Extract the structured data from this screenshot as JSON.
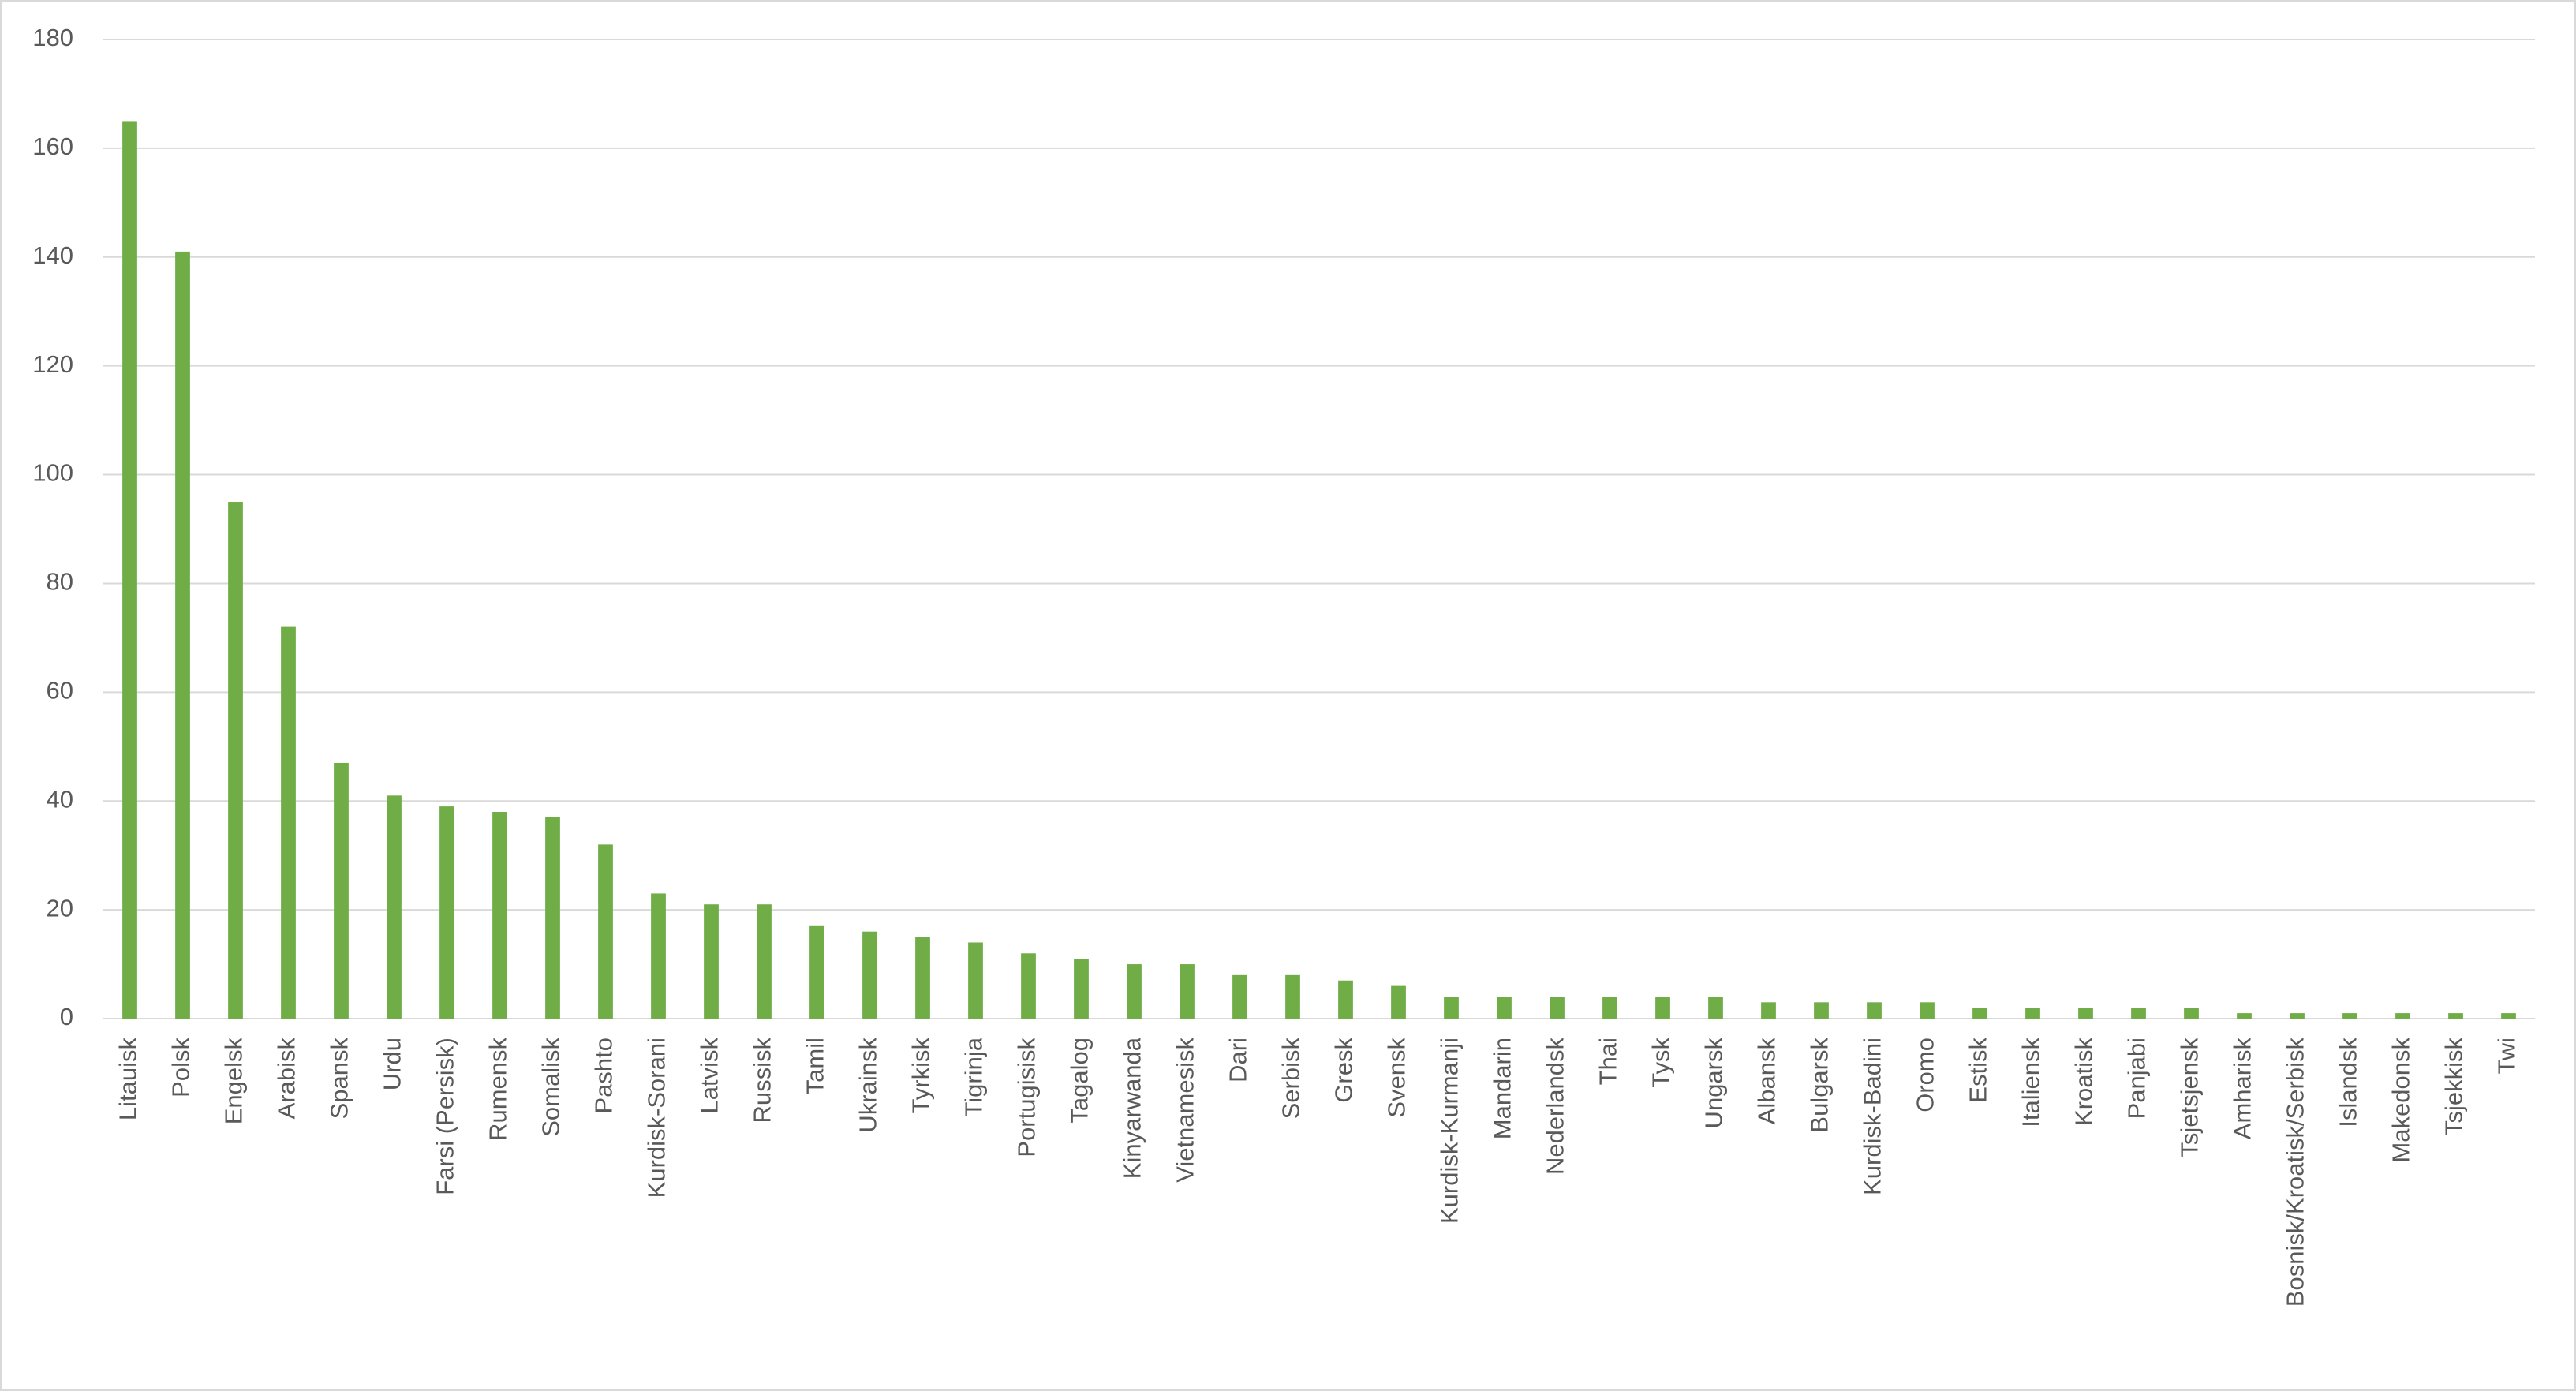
{
  "chart_data": {
    "type": "bar",
    "categories": [
      "Litauisk",
      "Polsk",
      "Engelsk",
      "Arabisk",
      "Spansk",
      "Urdu",
      "Farsi (Persisk)",
      "Rumensk",
      "Somalisk",
      "Pashto",
      "Kurdisk-Sorani",
      "Latvisk",
      "Russisk",
      "Tamil",
      "Ukrainsk",
      "Tyrkisk",
      "Tigrinja",
      "Portugisisk",
      "Tagalog",
      "Kinyarwanda",
      "Vietnamesisk",
      "Dari",
      "Serbisk",
      "Gresk",
      "Svensk",
      "Kurdisk-Kurmanji",
      "Mandarin",
      "Nederlandsk",
      "Thai",
      "Tysk",
      "Ungarsk",
      "Albansk",
      "Bulgarsk",
      "Kurdisk-Badini",
      "Oromo",
      "Estisk",
      "Italiensk",
      "Kroatisk",
      "Panjabi",
      "Tsjetsjensk",
      "Amharisk",
      "Bosnisk/Kroatisk/Serbisk",
      "Islandsk",
      "Makedonsk",
      "Tsjekkisk",
      "Twi"
    ],
    "values": [
      165,
      141,
      95,
      72,
      47,
      41,
      39,
      38,
      37,
      32,
      23,
      21,
      21,
      17,
      16,
      15,
      14,
      12,
      11,
      10,
      10,
      8,
      8,
      7,
      6,
      4,
      4,
      4,
      4,
      4,
      4,
      3,
      3,
      3,
      3,
      2,
      2,
      2,
      2,
      2,
      1,
      1,
      1,
      1,
      1,
      1
    ],
    "color": "#70ad47",
    "ylim": [
      0,
      180
    ],
    "yticks": [
      0,
      20,
      40,
      60,
      80,
      100,
      120,
      140,
      160,
      180
    ],
    "grid": true
  }
}
